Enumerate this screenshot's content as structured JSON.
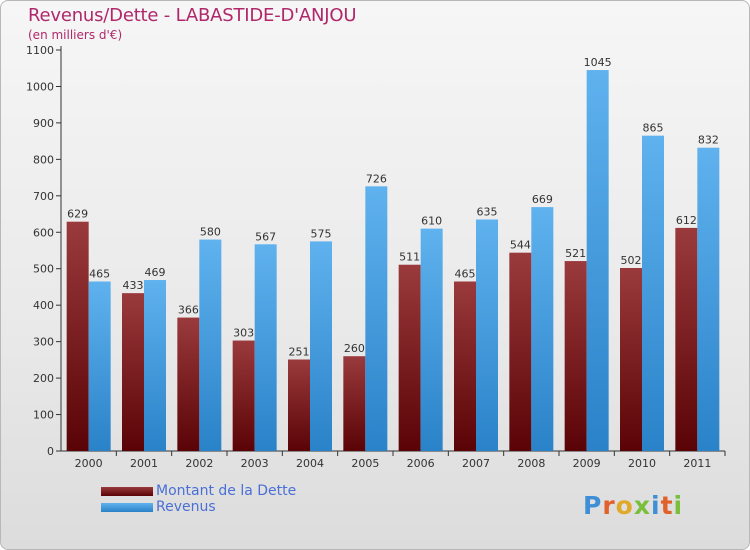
{
  "title": "Revenus/Dette - LABASTIDE-D'ANJOU",
  "subtitle": "(en milliers d'€)",
  "logo": {
    "text": "Proxiti"
  },
  "legend": [
    {
      "label": "Montant de la Dette",
      "color": "#6b0f12"
    },
    {
      "label": "Revenus",
      "color": "#4aa3e6"
    }
  ],
  "colors": {
    "dette_top": "#9a3a3c",
    "dette_bottom": "#5a0306",
    "revenus_top": "#5fb2ee",
    "revenus_bottom": "#2a82c8",
    "title": "#b0276a",
    "axis": "#333333"
  },
  "chart_data": {
    "type": "bar",
    "categories": [
      "2000",
      "2001",
      "2002",
      "2003",
      "2004",
      "2005",
      "2006",
      "2007",
      "2008",
      "2009",
      "2010",
      "2011"
    ],
    "series": [
      {
        "name": "Montant de la Dette",
        "values": [
          629,
          433,
          366,
          303,
          251,
          260,
          511,
          465,
          544,
          521,
          502,
          612
        ]
      },
      {
        "name": "Revenus",
        "values": [
          465,
          469,
          580,
          567,
          575,
          726,
          610,
          635,
          669,
          1045,
          865,
          832
        ]
      }
    ],
    "ylim": [
      0,
      1100
    ],
    "yticks": [
      0,
      100,
      200,
      300,
      400,
      500,
      600,
      700,
      800,
      900,
      1000,
      1100
    ],
    "grid": false,
    "legend_position": "bottom-left"
  }
}
